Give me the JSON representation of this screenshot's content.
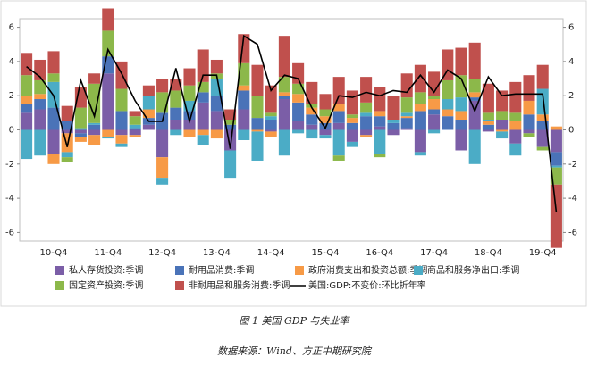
{
  "chart_data": {
    "type": "stacked_bar_line",
    "caption": "图 1   美国 GDP 与失业率",
    "source": "数据来源：Wind、方正中期研究院",
    "categories": [
      null,
      null,
      "10-Q4",
      null,
      null,
      null,
      "11-Q4",
      null,
      null,
      null,
      "12-Q4",
      null,
      null,
      null,
      "13-Q4",
      null,
      null,
      null,
      "14-Q4",
      null,
      null,
      null,
      "15-Q4",
      null,
      null,
      null,
      "16-Q4",
      null,
      null,
      null,
      "17-Q4",
      null,
      null,
      null,
      "18-Q4",
      null,
      null,
      null,
      "19-Q4",
      null
    ],
    "series": [
      {
        "name": "私人存货投资:季调",
        "color": "#7b5ea7",
        "kind": "bar",
        "values": [
          1.0,
          1.2,
          -1.4,
          -0.2,
          -0.2,
          -0.3,
          3.3,
          -0.3,
          -0.3,
          0.3,
          -1.6,
          0.6,
          0.6,
          1.6,
          1.1,
          -1.2,
          1.2,
          0.0,
          -0.1,
          1.8,
          0.5,
          0.3,
          -0.3,
          0.4,
          -0.7,
          -0.3,
          0.2,
          -0.3,
          0.1,
          -1.3,
          0.9,
          0.0,
          -1.2,
          1.7,
          -0.1,
          0.6,
          -0.8,
          -0.2,
          -1.0,
          -1.3
        ]
      },
      {
        "name": "耐用品消费:季调",
        "color": "#4a73b8",
        "kind": "bar",
        "values": [
          0.5,
          0.6,
          1.3,
          0.5,
          -0.2,
          0.3,
          1.0,
          1.1,
          0.1,
          0.4,
          1.0,
          0.7,
          0.5,
          0.6,
          0.9,
          0.3,
          1.1,
          0.7,
          0.6,
          0.2,
          1.1,
          0.6,
          0.4,
          0.7,
          0.4,
          0.8,
          0.6,
          0.4,
          0.6,
          1.1,
          0.3,
          0.8,
          0.6,
          0.2,
          0.3,
          0.0,
          0.0,
          0.9,
          0.5,
          -0.8
        ]
      },
      {
        "name": "政府消费支出和投资总额:季调",
        "color": "#f79a46",
        "kind": "bar",
        "values": [
          0.5,
          0.3,
          -0.6,
          -1.1,
          -0.3,
          -0.6,
          -0.4,
          -0.5,
          -0.1,
          0.5,
          -1.2,
          0.0,
          -0.4,
          -0.3,
          -0.5,
          0.0,
          0.3,
          -0.1,
          -0.3,
          0.2,
          0.5,
          0.4,
          0.4,
          0.4,
          0.3,
          -0.1,
          0.3,
          0.0,
          0.1,
          0.4,
          0.6,
          0.4,
          0.5,
          0.3,
          0.2,
          -0.1,
          0.5,
          0.8,
          0.4,
          0.2
        ]
      },
      {
        "name": "商品和服务净出口:季调",
        "color": "#4bacc6",
        "kind": "bar",
        "values": [
          -1.7,
          -1.5,
          1.5,
          -0.3,
          0.1,
          0.1,
          -0.1,
          -0.2,
          0.2,
          0.8,
          -0.4,
          -0.3,
          0.6,
          -0.6,
          1.0,
          -1.6,
          -0.6,
          -1.7,
          0.2,
          -1.5,
          -0.2,
          -0.5,
          -0.2,
          -1.5,
          -0.3,
          0.2,
          -1.4,
          0.2,
          0.2,
          -0.2,
          -0.2,
          0.6,
          0.8,
          -2.0,
          0.1,
          -0.4,
          -0.7,
          0.0,
          1.5,
          -0.1
        ]
      },
      {
        "name": "固定资产投资:季调",
        "color": "#8cb84a",
        "kind": "bar",
        "values": [
          1.2,
          0.8,
          0.5,
          -0.3,
          1.2,
          2.3,
          1.5,
          1.3,
          0.5,
          0.0,
          1.2,
          1.0,
          0.9,
          0.6,
          0.3,
          0.3,
          1.3,
          1.3,
          0.2,
          0.9,
          0.6,
          0.2,
          0.4,
          -0.3,
          0.2,
          0.6,
          -0.2,
          0.0,
          0.9,
          0.7,
          0.2,
          1.1,
          1.3,
          0.8,
          0.4,
          0.5,
          0.5,
          -0.2,
          -0.2,
          -1.0
        ]
      },
      {
        "name": "非耐用品和服务消费:季调",
        "color": "#c0504d",
        "kind": "bar",
        "values": [
          1.3,
          1.2,
          1.3,
          0.9,
          1.2,
          0.6,
          1.3,
          1.6,
          0.3,
          0.6,
          0.8,
          0.7,
          1.0,
          1.9,
          0.8,
          0.6,
          1.7,
          1.8,
          1.6,
          2.4,
          1.2,
          1.3,
          0.9,
          1.6,
          1.4,
          1.5,
          1.4,
          1.4,
          1.4,
          1.6,
          1.4,
          1.8,
          1.6,
          2.1,
          1.7,
          1.2,
          1.8,
          1.5,
          1.4,
          -3.7
        ]
      },
      {
        "name": "美国:GDP:不变价:环比折年率",
        "color": "#000000",
        "kind": "line",
        "axis": "y2",
        "values": [
          3.7,
          3.1,
          2.0,
          -1.0,
          2.9,
          0.8,
          4.7,
          3.3,
          1.7,
          0.5,
          0.5,
          3.6,
          0.5,
          3.2,
          3.2,
          -1.1,
          5.5,
          5.0,
          2.3,
          3.2,
          3.0,
          1.3,
          0.1,
          2.0,
          1.9,
          2.2,
          2.0,
          2.3,
          2.2,
          3.2,
          2.2,
          3.5,
          3.0,
          1.1,
          3.1,
          2.0,
          2.1,
          2.1,
          2.1,
          -4.8
        ]
      }
    ],
    "ylim": [
      -6.5,
      6.5
    ],
    "yticks": [
      -6,
      -4,
      -2,
      0,
      2,
      4,
      6
    ],
    "y2lim": [
      -6.5,
      6.5
    ],
    "y2ticks": [
      -6,
      -4,
      -2,
      0,
      2,
      4,
      6
    ]
  }
}
